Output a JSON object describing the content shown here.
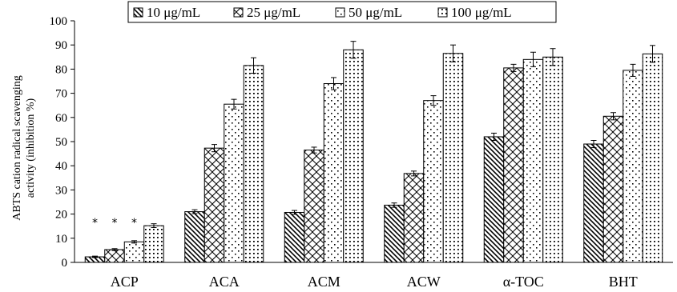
{
  "chart_data": {
    "type": "bar",
    "ylabel_lines": [
      "ABTS cation radical scavenging",
      "activity (inhibition %)"
    ],
    "ylim": [
      0,
      100
    ],
    "yticks": [
      0,
      10,
      20,
      30,
      40,
      50,
      60,
      70,
      80,
      90,
      100
    ],
    "grid": false,
    "legend_position": "top",
    "categories": [
      "ACP",
      "ACA",
      "ACM",
      "ACW",
      "α-TOC",
      "BHT"
    ],
    "series": [
      {
        "name": "10 μg/mL",
        "pattern": "diagonal-back",
        "values": [
          2.3,
          21.0,
          20.7,
          23.7,
          52.0,
          49.0
        ],
        "errors": [
          0.3,
          0.8,
          0.8,
          0.9,
          1.5,
          1.5
        ]
      },
      {
        "name": "25 μg/mL",
        "pattern": "crosshatch",
        "values": [
          5.3,
          47.3,
          46.5,
          36.8,
          80.5,
          60.5
        ],
        "errors": [
          0.4,
          1.5,
          1.2,
          1.0,
          1.5,
          1.5
        ]
      },
      {
        "name": "50 μg/mL",
        "pattern": "sparse-dots",
        "values": [
          8.5,
          65.5,
          74.0,
          67.0,
          84.0,
          79.5
        ],
        "errors": [
          0.5,
          2.0,
          2.5,
          2.0,
          3.0,
          2.5
        ]
      },
      {
        "name": "100 μg/mL",
        "pattern": "dense-dots",
        "values": [
          15.2,
          81.5,
          88.0,
          86.5,
          85.0,
          86.3
        ],
        "errors": [
          0.8,
          3.2,
          3.5,
          3.5,
          3.5,
          3.5
        ]
      }
    ],
    "annotations": [
      {
        "text": "*",
        "category": "ACP",
        "series": 0
      },
      {
        "text": "*",
        "category": "ACP",
        "series": 1
      },
      {
        "text": "*",
        "category": "ACP",
        "series": 2
      }
    ]
  }
}
